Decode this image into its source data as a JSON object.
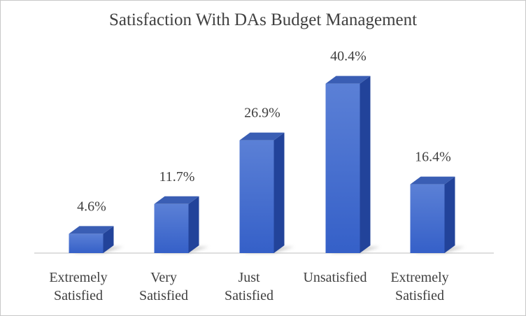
{
  "chart_data": {
    "type": "bar",
    "title": "Satisfaction With DAs Budget Management",
    "categories": [
      [
        "Extremely",
        "Satisfied"
      ],
      [
        "Very",
        "Satisfied"
      ],
      [
        "Just",
        "Satisfied"
      ],
      [
        "Unsatisfied"
      ],
      [
        "Extremely",
        "Satisfied"
      ]
    ],
    "values": [
      4.6,
      11.7,
      26.9,
      40.4,
      16.4
    ],
    "data_labels": [
      "4.6%",
      "11.7%",
      "26.9%",
      "40.4%",
      "16.4%"
    ],
    "xlabel": "",
    "ylabel": "",
    "ylim": [
      0,
      45
    ],
    "grid": false,
    "legend": "none",
    "colors": {
      "bar_front_top": "#5b80d6",
      "bar_front_bottom": "#3560c8",
      "bar_side": "#22439a",
      "bar_top": "#3a5eb4",
      "shadow": "#bdbdbd",
      "axis": "#bfbfbf",
      "text": "#404040"
    }
  }
}
